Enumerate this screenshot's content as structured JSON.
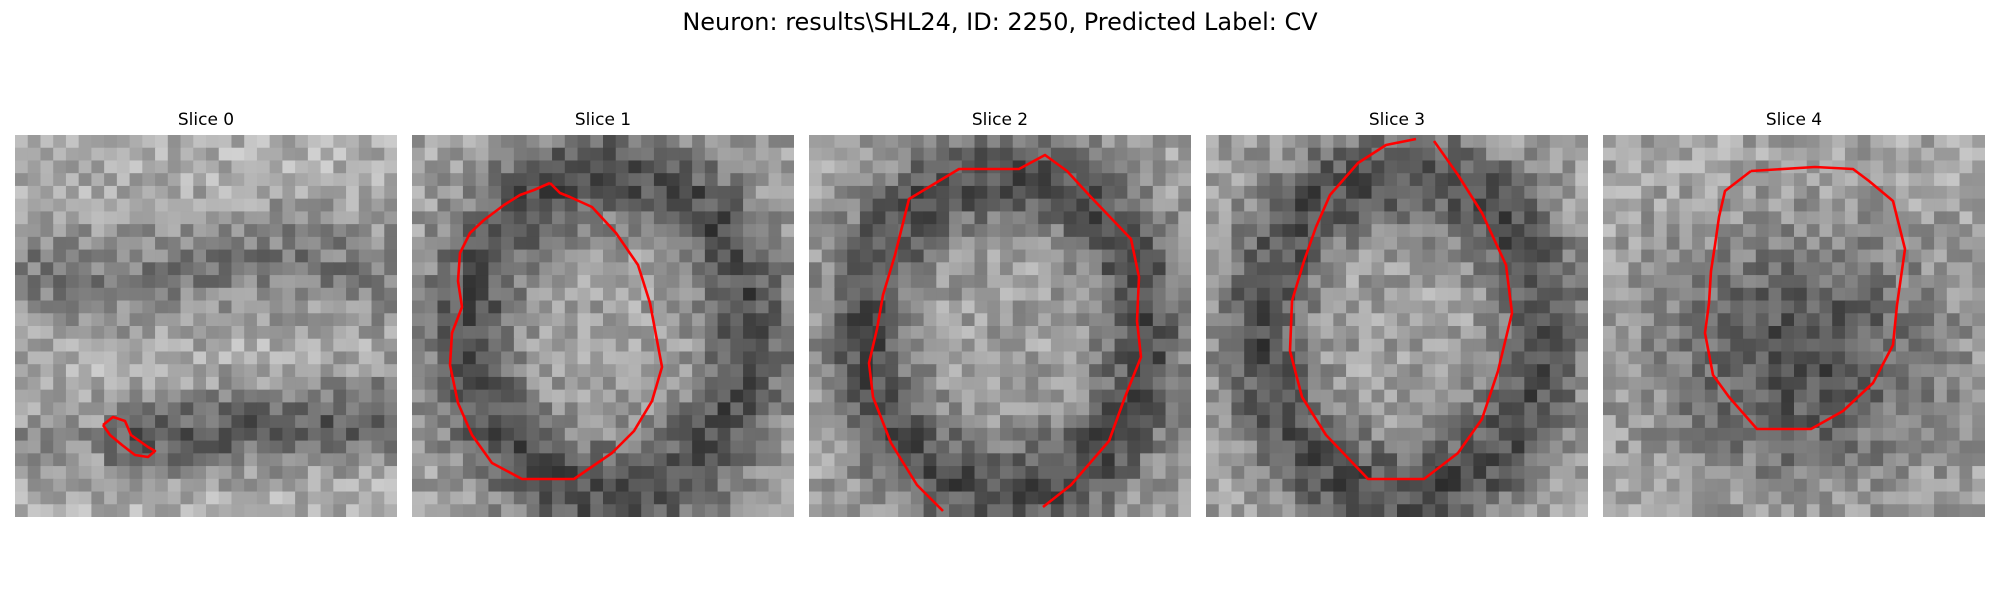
{
  "figure": {
    "title": "Neuron: results\\SHL24, ID: 2250, Predicted Label: CV"
  },
  "panels": [
    {
      "title": "Slice 0",
      "variant": "band",
      "contour_present": true
    },
    {
      "title": "Slice 1",
      "variant": "ring",
      "contour_present": true
    },
    {
      "title": "Slice 2",
      "variant": "ring",
      "contour_present": true
    },
    {
      "title": "Slice 3",
      "variant": "ring",
      "contour_present": true
    },
    {
      "title": "Slice 4",
      "variant": "blob",
      "contour_present": true
    }
  ],
  "colors": {
    "contour": "#ff0000",
    "background": "#ffffff"
  }
}
